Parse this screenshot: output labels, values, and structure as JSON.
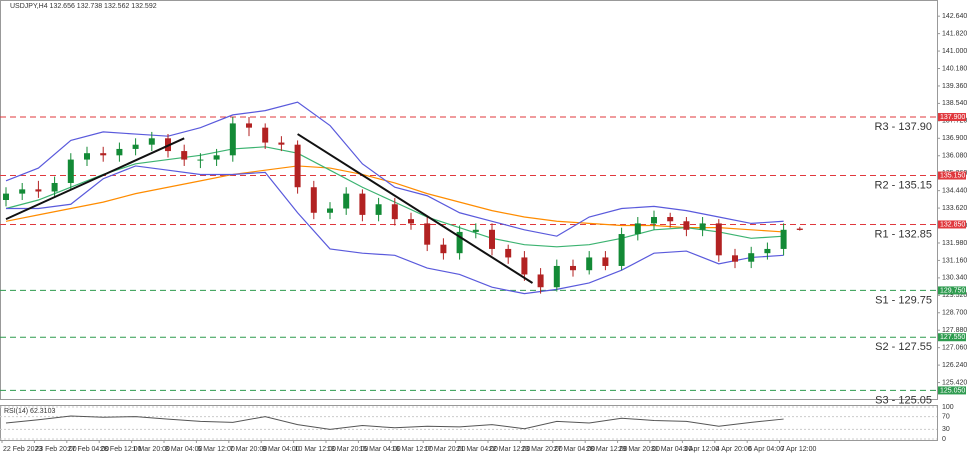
{
  "chart_data": {
    "type": "candlestick",
    "title": "USDJPY,H4 132.656 132.738 132.562 132.592",
    "x_labels": [
      "22 Feb 2023",
      "23 Feb 20:00",
      "27 Feb 04:00",
      "28 Feb 12:00",
      "1 Mar 20:00",
      "3 Mar 04:00",
      "6 Mar 12:00",
      "7 Mar 20:00",
      "9 Mar 04:00",
      "10 Mar 12:00",
      "13 Mar 20:00",
      "15 Mar 04:00",
      "16 Mar 12:00",
      "17 Mar 20:00",
      "21 Mar 04:00",
      "22 Mar 12:00",
      "23 Mar 20:00",
      "27 Mar 04:00",
      "28 Mar 12:00",
      "29 Mar 20:00",
      "31 Mar 04:00",
      "3 Apr 12:00",
      "4 Apr 20:00",
      "6 Apr 04:00",
      "7 Apr 12:00"
    ],
    "open": [
      134.0,
      134.3,
      134.5,
      134.4,
      134.8,
      135.9,
      136.2,
      136.1,
      136.4,
      136.6,
      136.9,
      136.3,
      135.9,
      135.9,
      136.1,
      137.6,
      137.4,
      136.7,
      136.6,
      134.6,
      133.4,
      133.6,
      134.3,
      133.3,
      133.8,
      133.1,
      132.9,
      131.9,
      131.5,
      132.5,
      132.6,
      131.7,
      131.3,
      130.5,
      129.9,
      130.9,
      130.7,
      131.3,
      130.9,
      132.4,
      132.9,
      133.2,
      133.0,
      132.6,
      132.9,
      131.4,
      131.1,
      131.5,
      131.7,
      132.656
    ],
    "high": [
      134.6,
      134.8,
      134.9,
      135.1,
      136.2,
      136.5,
      136.5,
      136.7,
      136.9,
      137.2,
      137.1,
      136.6,
      136.2,
      136.4,
      137.9,
      137.9,
      137.6,
      137.0,
      136.8,
      134.9,
      133.9,
      134.6,
      134.5,
      134.1,
      134.1,
      133.4,
      133.2,
      132.2,
      132.8,
      132.9,
      132.9,
      131.9,
      131.6,
      130.8,
      131.2,
      131.2,
      131.6,
      131.6,
      132.7,
      133.2,
      133.5,
      133.4,
      133.2,
      133.2,
      133.1,
      131.7,
      131.8,
      132.0,
      132.9,
      132.738
    ],
    "low": [
      133.7,
      134.0,
      134.1,
      134.1,
      134.5,
      135.6,
      135.8,
      135.8,
      136.1,
      136.3,
      136.0,
      135.6,
      135.5,
      135.6,
      135.8,
      137.0,
      136.4,
      136.3,
      134.3,
      133.1,
      133.1,
      133.3,
      133.0,
      133.0,
      132.8,
      132.6,
      131.6,
      131.2,
      131.2,
      132.2,
      131.4,
      131.0,
      130.2,
      129.6,
      129.7,
      130.4,
      130.5,
      130.7,
      130.7,
      132.1,
      132.6,
      132.7,
      132.3,
      132.3,
      131.1,
      130.8,
      130.8,
      131.2,
      131.4,
      132.562
    ],
    "close": [
      134.3,
      134.5,
      134.4,
      134.8,
      135.9,
      136.2,
      136.1,
      136.4,
      136.6,
      136.9,
      136.3,
      135.9,
      135.9,
      136.1,
      137.6,
      137.4,
      136.7,
      136.6,
      134.6,
      133.4,
      133.6,
      134.3,
      133.3,
      133.8,
      133.1,
      132.9,
      131.9,
      131.5,
      132.5,
      132.6,
      131.7,
      131.3,
      130.5,
      129.9,
      130.9,
      130.7,
      131.3,
      130.9,
      132.4,
      132.9,
      133.2,
      133.0,
      132.6,
      132.9,
      131.4,
      131.1,
      131.5,
      131.7,
      132.6,
      132.592
    ],
    "up_color": "#138a36",
    "down_color": "#b22222",
    "overlays": [
      {
        "color": "#ff8c00",
        "values": [
          133.0,
          133.3,
          133.6,
          133.9,
          134.3,
          134.6,
          134.9,
          135.2,
          135.4,
          135.6,
          135.5,
          135.2,
          134.8,
          134.3,
          133.9,
          133.5,
          133.2,
          133.0,
          132.9,
          132.8,
          132.8,
          132.7,
          132.7,
          132.6,
          132.5
        ]
      },
      {
        "color": "#3cb371",
        "values": [
          133.6,
          134.0,
          134.6,
          135.2,
          135.7,
          135.9,
          136.1,
          136.4,
          136.5,
          136.2,
          135.4,
          134.6,
          133.9,
          133.2,
          132.7,
          132.2,
          131.9,
          131.8,
          131.9,
          132.2,
          132.6,
          132.7,
          132.5,
          132.2,
          132.3
        ]
      },
      {
        "color": "#5a5adc",
        "values": [
          134.9,
          135.5,
          136.8,
          137.2,
          137.1,
          137.0,
          137.4,
          138.0,
          138.2,
          138.6,
          137.5,
          135.7,
          134.6,
          134.2,
          133.4,
          133.0,
          132.6,
          132.3,
          133.2,
          133.6,
          133.7,
          133.5,
          133.2,
          132.9,
          133.0
        ]
      },
      {
        "color": "#5a5adc",
        "values": [
          133.6,
          133.6,
          133.8,
          135.0,
          135.6,
          135.4,
          135.2,
          135.2,
          135.3,
          133.4,
          131.7,
          131.5,
          131.4,
          130.8,
          130.5,
          129.9,
          129.6,
          129.8,
          130.1,
          130.7,
          131.5,
          131.6,
          131.0,
          131.3,
          131.4
        ]
      }
    ],
    "trendlines": [
      {
        "from": [
          0,
          133.1
        ],
        "to": [
          11,
          136.9
        ]
      },
      {
        "from": [
          18,
          137.1
        ],
        "to": [
          32.5,
          130.1
        ]
      }
    ],
    "levels": [
      {
        "label": "R3 - 137.90",
        "value": 137.9,
        "axis_label": "137.900",
        "color": "#e0393e"
      },
      {
        "label": "R2 - 135.15",
        "value": 135.15,
        "axis_label": "135.150",
        "color": "#e0393e"
      },
      {
        "label": "R1 - 132.85",
        "value": 132.85,
        "axis_label": "132.850",
        "color": "#e0393e"
      },
      {
        "label": "S1 - 129.75",
        "value": 129.75,
        "axis_label": "129.750",
        "color": "#2e9b4f"
      },
      {
        "label": "S2 - 127.55",
        "value": 127.55,
        "axis_label": "127.550",
        "color": "#2e9b4f"
      },
      {
        "label": "S3 - 125.05",
        "value": 125.05,
        "axis_label": "125.050",
        "color": "#2e9b4f"
      }
    ],
    "ylim": [
      124.6,
      143.4
    ],
    "yticks": [
      {
        "value": 142.64,
        "label": "142.640"
      },
      {
        "value": 141.82,
        "label": "141.820"
      },
      {
        "value": 141.0,
        "label": "141.000"
      },
      {
        "value": 140.18,
        "label": "140.180"
      },
      {
        "value": 139.36,
        "label": "139.360"
      },
      {
        "value": 138.54,
        "label": "138.540"
      },
      {
        "value": 137.72,
        "label": "137.720"
      },
      {
        "value": 136.9,
        "label": "136.900"
      },
      {
        "value": 136.08,
        "label": "136.080"
      },
      {
        "value": 135.26,
        "label": "135.260"
      },
      {
        "value": 134.44,
        "label": "134.440"
      },
      {
        "value": 133.62,
        "label": "133.620"
      },
      {
        "value": 132.8,
        "label": "132.800"
      },
      {
        "value": 131.98,
        "label": "131.980"
      },
      {
        "value": 131.16,
        "label": "131.160"
      },
      {
        "value": 130.34,
        "label": "130.340"
      },
      {
        "value": 129.52,
        "label": "129.520"
      },
      {
        "value": 128.7,
        "label": "128.700"
      },
      {
        "value": 127.88,
        "label": "127.880"
      },
      {
        "value": 127.06,
        "label": "127.060"
      },
      {
        "value": 126.24,
        "label": "126.240"
      },
      {
        "value": 125.42,
        "label": "125.420"
      }
    ],
    "rsi": {
      "title": "RSI(14) 62.3103",
      "color": "#555555",
      "ylim": [
        0,
        100
      ],
      "yticks": [
        100,
        70,
        30,
        0
      ],
      "values": [
        50,
        60,
        72,
        68,
        70,
        62,
        55,
        52,
        70,
        45,
        30,
        42,
        35,
        40,
        38,
        45,
        32,
        55,
        50,
        65,
        58,
        55,
        40,
        52,
        62.3103
      ]
    }
  }
}
